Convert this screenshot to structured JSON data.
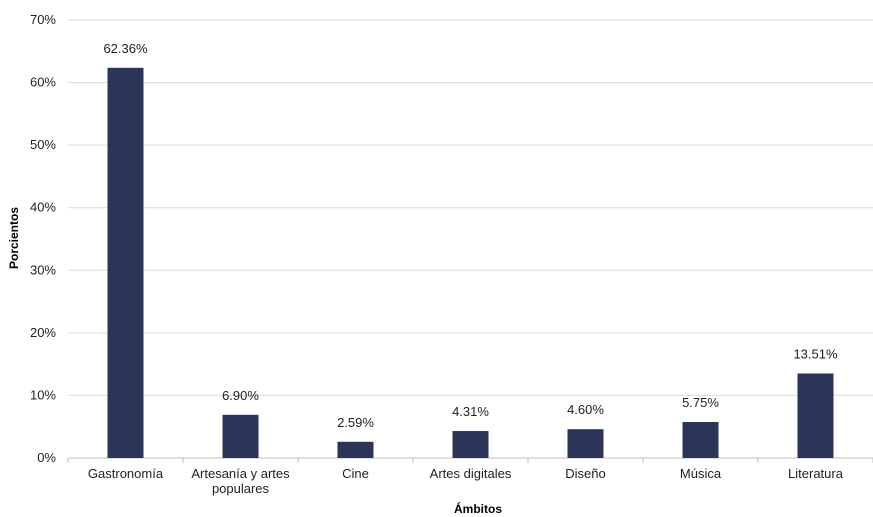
{
  "chart_data": {
    "type": "bar",
    "categories": [
      "Gastronomía",
      "Artesanía y artes populares",
      "Cine",
      "Artes digitales",
      "Diseño",
      "Música",
      "Literatura"
    ],
    "category_lines": [
      [
        "Gastronomía"
      ],
      [
        "Artesanía y artes",
        "populares"
      ],
      [
        "Cine"
      ],
      [
        "Artes digitales"
      ],
      [
        "Diseño"
      ],
      [
        "Música"
      ],
      [
        "Literatura"
      ]
    ],
    "values": [
      62.36,
      6.9,
      2.59,
      4.31,
      4.6,
      5.75,
      13.51
    ],
    "data_labels": [
      "62.36%",
      "6.90%",
      "2.59%",
      "4.31%",
      "4.60%",
      "5.75%",
      "13.51%"
    ],
    "xlabel": "Ámbitos",
    "ylabel": "Porcientos",
    "ylim": [
      0,
      70
    ],
    "yticks": [
      "0%",
      "10%",
      "20%",
      "30%",
      "40%",
      "50%",
      "60%",
      "70%"
    ],
    "grid": true,
    "legend": "none",
    "bar_color": "#2b3558",
    "grid_color": "#d9d9d9"
  }
}
